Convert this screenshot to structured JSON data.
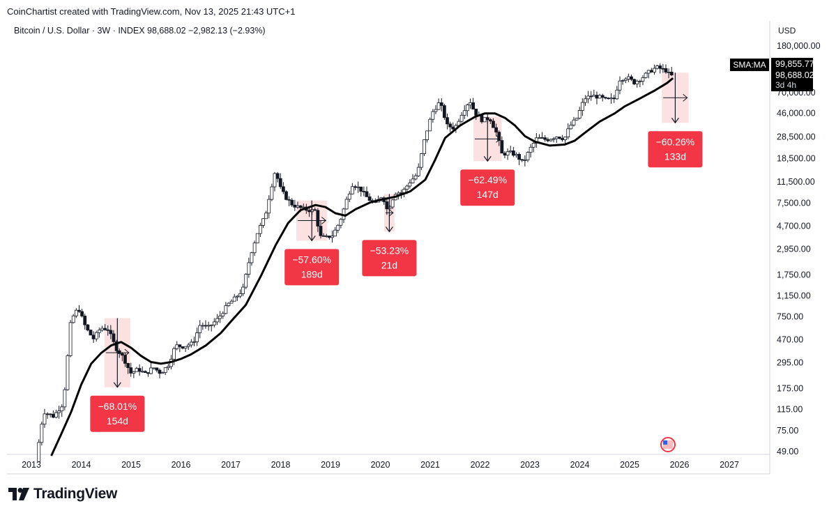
{
  "header": {
    "credit": "CoinChartist created with TradingView.com, Nov 13, 2025 21:43 UTC+1",
    "symbol_line": "Bitcoin / U.S. Dollar · 3W · INDEX  98,688.02  −2,982.13 (−2.93%)"
  },
  "footer": {
    "brand": "TradingView"
  },
  "colors": {
    "up": "#131722",
    "down": "#131722",
    "sma": "#000000",
    "drawdown_bg": "#f9d4d6",
    "label_bg": "#f23645",
    "label_text": "#ffffff",
    "axis_text": "#131722",
    "grid": "#e0e3eb"
  },
  "chart_data": {
    "type": "candlestick",
    "title": "Bitcoin / U.S. Dollar · 3W · INDEX",
    "scale": "log",
    "currency": "USD",
    "y_ticks": [
      49,
      75,
      115,
      175,
      295,
      470,
      750,
      1150,
      1750,
      2950,
      4700,
      7500,
      11500,
      18500,
      28500,
      46000,
      70000,
      180000
    ],
    "y_tick_labels": [
      "49.00",
      "75.00",
      "115.00",
      "175.00",
      "295.00",
      "470.00",
      "750.00",
      "1,150.00",
      "1,750.00",
      "2,950.00",
      "4,700.00",
      "7,500.00",
      "11,500.00",
      "18,500.00",
      "28,500.00",
      "46,000.00",
      "70,000.00",
      "180,000.00"
    ],
    "x_ticks": [
      2013,
      2014,
      2015,
      2016,
      2017,
      2018,
      2019,
      2020,
      2021,
      2022,
      2023,
      2024,
      2025,
      2026,
      2027
    ],
    "x_tick_labels": [
      "2013",
      "2014",
      "2015",
      "2016",
      "2017",
      "2018",
      "2019",
      "2020",
      "2021",
      "2022",
      "2023",
      "2024",
      "2025",
      "2026",
      "2027"
    ],
    "price_path": [
      [
        2013.15,
        40
      ],
      [
        2013.3,
        110
      ],
      [
        2013.5,
        100
      ],
      [
        2013.7,
        130
      ],
      [
        2013.85,
        700
      ],
      [
        2014.0,
        900
      ],
      [
        2014.15,
        600
      ],
      [
        2014.3,
        480
      ],
      [
        2014.45,
        600
      ],
      [
        2014.6,
        580
      ],
      [
        2014.75,
        400
      ],
      [
        2014.9,
        330
      ],
      [
        2015.05,
        240
      ],
      [
        2015.2,
        260
      ],
      [
        2015.35,
        235
      ],
      [
        2015.5,
        270
      ],
      [
        2015.65,
        240
      ],
      [
        2015.8,
        280
      ],
      [
        2015.95,
        420
      ],
      [
        2016.1,
        410
      ],
      [
        2016.3,
        440
      ],
      [
        2016.45,
        650
      ],
      [
        2016.6,
        600
      ],
      [
        2016.8,
        720
      ],
      [
        2017.0,
        960
      ],
      [
        2017.15,
        1100
      ],
      [
        2017.3,
        1300
      ],
      [
        2017.45,
        2600
      ],
      [
        2017.6,
        4200
      ],
      [
        2017.75,
        5800
      ],
      [
        2017.85,
        9500
      ],
      [
        2017.95,
        14500
      ],
      [
        2018.05,
        10200
      ],
      [
        2018.15,
        8500
      ],
      [
        2018.3,
        7200
      ],
      [
        2018.45,
        6800
      ],
      [
        2018.6,
        6500
      ],
      [
        2018.75,
        6400
      ],
      [
        2018.85,
        3800
      ],
      [
        2018.95,
        3700
      ],
      [
        2019.1,
        3900
      ],
      [
        2019.25,
        5200
      ],
      [
        2019.4,
        8500
      ],
      [
        2019.5,
        11000
      ],
      [
        2019.65,
        10000
      ],
      [
        2019.8,
        8300
      ],
      [
        2019.95,
        7300
      ],
      [
        2020.1,
        8800
      ],
      [
        2020.2,
        6400
      ],
      [
        2020.35,
        9200
      ],
      [
        2020.5,
        9300
      ],
      [
        2020.65,
        11500
      ],
      [
        2020.8,
        13500
      ],
      [
        2020.95,
        28000
      ],
      [
        2021.1,
        47000
      ],
      [
        2021.25,
        58000
      ],
      [
        2021.4,
        36000
      ],
      [
        2021.55,
        34000
      ],
      [
        2021.7,
        47000
      ],
      [
        2021.85,
        60000
      ],
      [
        2021.95,
        47000
      ],
      [
        2022.1,
        40000
      ],
      [
        2022.25,
        42000
      ],
      [
        2022.4,
        30000
      ],
      [
        2022.5,
        20000
      ],
      [
        2022.65,
        21000
      ],
      [
        2022.8,
        19500
      ],
      [
        2022.92,
        16800
      ],
      [
        2023.05,
        22000
      ],
      [
        2023.2,
        28000
      ],
      [
        2023.4,
        27000
      ],
      [
        2023.6,
        29000
      ],
      [
        2023.75,
        27500
      ],
      [
        2023.85,
        35000
      ],
      [
        2024.0,
        42000
      ],
      [
        2024.15,
        62000
      ],
      [
        2024.3,
        66000
      ],
      [
        2024.45,
        64000
      ],
      [
        2024.6,
        60000
      ],
      [
        2024.75,
        62000
      ],
      [
        2024.85,
        91000
      ],
      [
        2025.0,
        96000
      ],
      [
        2025.15,
        86000
      ],
      [
        2025.3,
        94000
      ],
      [
        2025.45,
        107000
      ],
      [
        2025.6,
        117000
      ],
      [
        2025.72,
        112000
      ],
      [
        2025.8,
        109000
      ],
      [
        2025.87,
        98688
      ]
    ],
    "sma_label": "SMA:MA",
    "sma": [
      [
        2013.4,
        45
      ],
      [
        2013.6,
        70
      ],
      [
        2013.8,
        110
      ],
      [
        2014.0,
        190
      ],
      [
        2014.2,
        290
      ],
      [
        2014.4,
        360
      ],
      [
        2014.6,
        420
      ],
      [
        2014.8,
        450
      ],
      [
        2015.0,
        400
      ],
      [
        2015.2,
        340
      ],
      [
        2015.4,
        300
      ],
      [
        2015.6,
        290
      ],
      [
        2015.8,
        300
      ],
      [
        2016.0,
        320
      ],
      [
        2016.2,
        350
      ],
      [
        2016.5,
        420
      ],
      [
        2016.8,
        540
      ],
      [
        2017.0,
        680
      ],
      [
        2017.3,
        950
      ],
      [
        2017.6,
        1700
      ],
      [
        2017.9,
        3200
      ],
      [
        2018.15,
        5000
      ],
      [
        2018.4,
        6500
      ],
      [
        2018.7,
        7200
      ],
      [
        2018.9,
        6900
      ],
      [
        2019.1,
        6100
      ],
      [
        2019.3,
        5800
      ],
      [
        2019.5,
        6600
      ],
      [
        2019.8,
        7600
      ],
      [
        2020.0,
        8000
      ],
      [
        2020.3,
        8500
      ],
      [
        2020.6,
        9500
      ],
      [
        2020.9,
        12000
      ],
      [
        2021.1,
        18000
      ],
      [
        2021.3,
        28000
      ],
      [
        2021.6,
        36000
      ],
      [
        2021.9,
        43000
      ],
      [
        2022.1,
        46000
      ],
      [
        2022.3,
        46000
      ],
      [
        2022.5,
        42000
      ],
      [
        2022.7,
        36000
      ],
      [
        2022.9,
        29000
      ],
      [
        2023.1,
        26000
      ],
      [
        2023.4,
        24000
      ],
      [
        2023.7,
        24500
      ],
      [
        2023.9,
        26500
      ],
      [
        2024.1,
        31000
      ],
      [
        2024.4,
        39000
      ],
      [
        2024.7,
        46000
      ],
      [
        2024.9,
        53000
      ],
      [
        2025.2,
        62000
      ],
      [
        2025.5,
        73000
      ],
      [
        2025.75,
        85000
      ],
      [
        2025.87,
        94000
      ]
    ],
    "last_price": "98,688.02",
    "prev_price": "99,855.77",
    "countdown": "3d 4h",
    "drawdowns": [
      {
        "x0": 2014.55,
        "x1": 2014.9,
        "top": 730,
        "bottom": 180,
        "pct": "−68.01%",
        "days": "154d"
      },
      {
        "x0": 2018.4,
        "x1": 2018.85,
        "top": 7900,
        "bottom": 3500,
        "pct": "−57.60%",
        "days": "189d"
      },
      {
        "x0": 2020.16,
        "x1": 2020.2,
        "top": 9000,
        "bottom": 4200,
        "pct": "−53.23%",
        "days": "21d"
      },
      {
        "x0": 2021.95,
        "x1": 2022.35,
        "top": 43000,
        "bottom": 17500,
        "pct": "−62.49%",
        "days": "147d"
      },
      {
        "x0": 2025.73,
        "x1": 2026.1,
        "top": 105000,
        "bottom": 38000,
        "pct": "−60.26%",
        "days": "133d"
      }
    ]
  }
}
